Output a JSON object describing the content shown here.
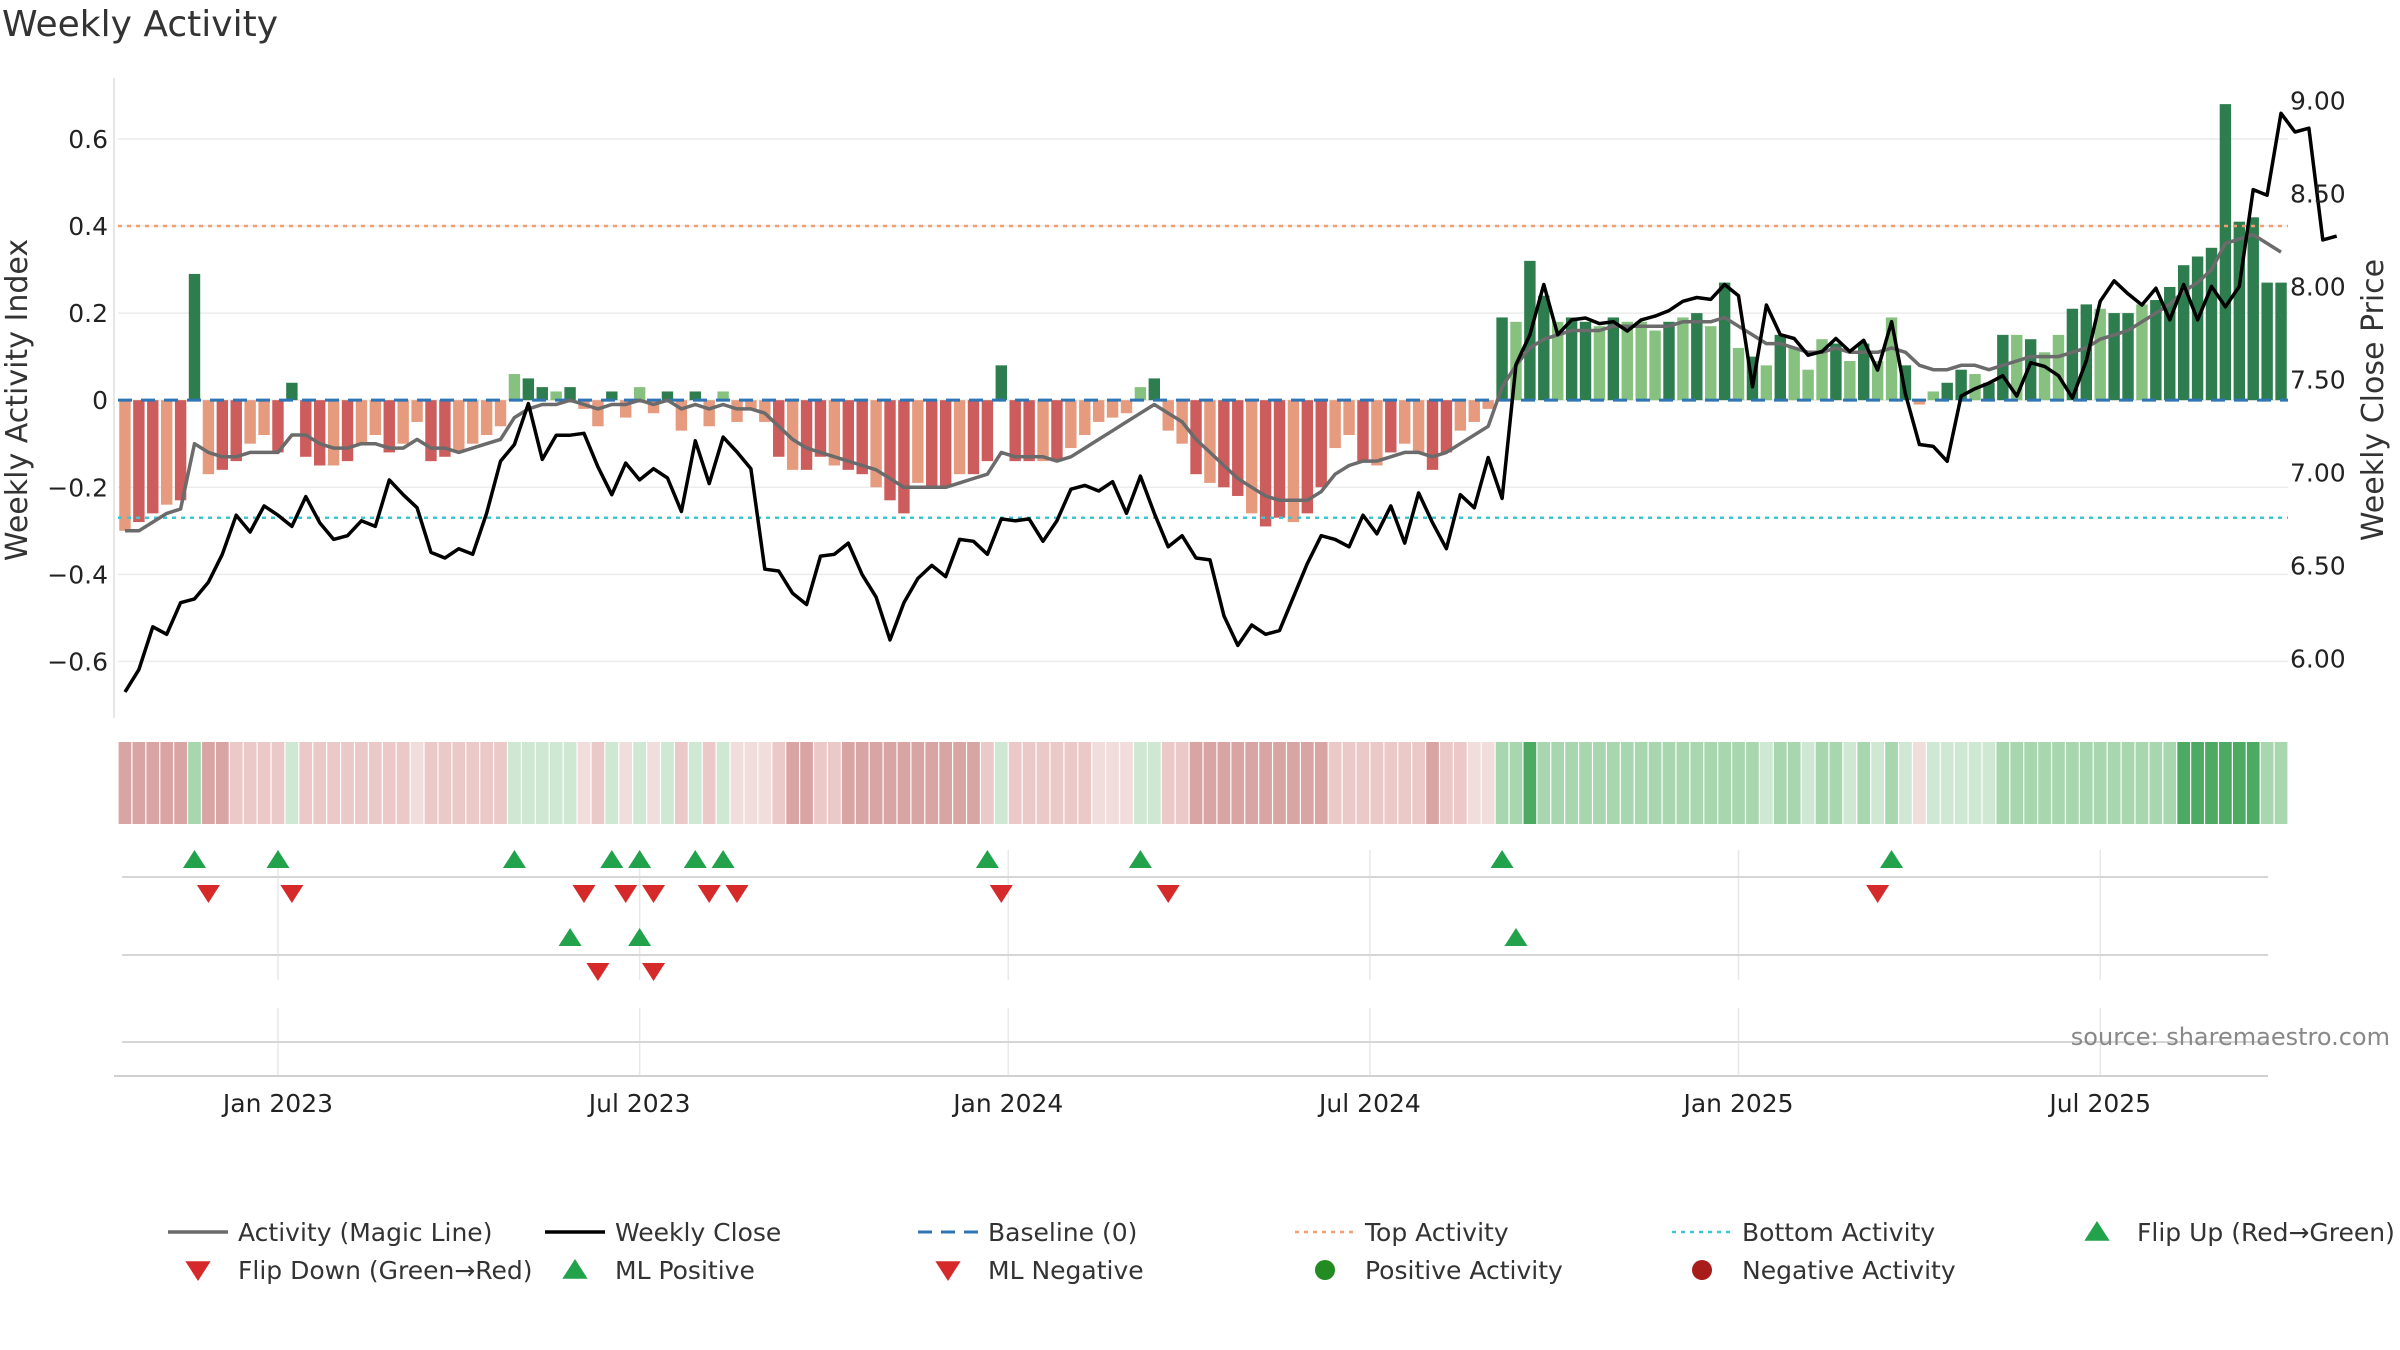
{
  "chart_data": {
    "type": "bar",
    "title": "Weekly Activity",
    "ylabel": "Weekly Activity Index",
    "y2label": "Weekly Close Price",
    "ylim": [
      -0.73,
      0.74
    ],
    "y2lim": [
      5.68,
      9.12
    ],
    "yticks": [
      -0.6,
      -0.4,
      -0.2,
      0,
      0.2,
      0.4,
      0.6
    ],
    "ytick_labels": [
      "−0.6",
      "−0.4",
      "−0.2",
      "0",
      "0.2",
      "0.4",
      "0.6"
    ],
    "y2ticks": [
      6.0,
      6.5,
      7.0,
      7.5,
      8.0,
      8.5,
      9.0
    ],
    "y2tick_labels": [
      "6.00",
      "6.50",
      "7.00",
      "7.50",
      "8.00",
      "8.50",
      "9.00"
    ],
    "x_month_ticks": [
      {
        "label": "Jan 2023",
        "week": 11.5
      },
      {
        "label": "Jul 2023",
        "week": 37.5
      },
      {
        "label": "Jan 2024",
        "week": 64
      },
      {
        "label": "Jul 2024",
        "week": 90
      },
      {
        "label": "Jan 2025",
        "week": 116.5
      },
      {
        "label": "Jul 2025",
        "week": 142.5
      }
    ],
    "top_activity": 0.4,
    "bottom_activity": -0.27,
    "activity": [
      -0.3,
      -0.28,
      -0.26,
      -0.24,
      -0.23,
      0.29,
      -0.17,
      -0.16,
      -0.14,
      -0.1,
      -0.08,
      -0.12,
      0.04,
      -0.13,
      -0.15,
      -0.15,
      -0.14,
      -0.1,
      -0.08,
      -0.12,
      -0.1,
      -0.05,
      -0.14,
      -0.13,
      -0.12,
      -0.1,
      -0.08,
      -0.06,
      0.06,
      0.05,
      0.03,
      0.02,
      0.03,
      -0.02,
      -0.06,
      0.02,
      -0.04,
      0.03,
      -0.03,
      0.02,
      -0.07,
      0.02,
      -0.06,
      0.02,
      -0.05,
      -0.02,
      -0.05,
      -0.13,
      -0.16,
      -0.16,
      -0.13,
      -0.15,
      -0.16,
      -0.17,
      -0.2,
      -0.23,
      -0.26,
      -0.19,
      -0.2,
      -0.2,
      -0.17,
      -0.17,
      -0.14,
      0.08,
      -0.14,
      -0.14,
      -0.14,
      -0.14,
      -0.11,
      -0.08,
      -0.05,
      -0.04,
      -0.03,
      0.03,
      0.05,
      -0.07,
      -0.1,
      -0.17,
      -0.19,
      -0.2,
      -0.22,
      -0.26,
      -0.29,
      -0.27,
      -0.28,
      -0.26,
      -0.2,
      -0.11,
      -0.08,
      -0.14,
      -0.15,
      -0.12,
      -0.1,
      -0.12,
      -0.16,
      -0.12,
      -0.07,
      -0.05,
      -0.02,
      0.19,
      0.18,
      0.32,
      0.24,
      0.18,
      0.19,
      0.18,
      0.17,
      0.19,
      0.18,
      0.18,
      0.16,
      0.18,
      0.19,
      0.2,
      0.17,
      0.27,
      0.12,
      0.1,
      0.08,
      0.15,
      0.12,
      0.07,
      0.14,
      0.13,
      0.09,
      0.13,
      0.09,
      0.19,
      0.08,
      -0.01,
      0.02,
      0.04,
      0.07,
      0.06,
      0.04,
      0.15,
      0.15,
      0.14,
      0.11,
      0.15,
      0.21,
      0.22,
      0.21,
      0.2,
      0.2,
      0.22,
      0.23,
      0.26,
      0.31,
      0.33,
      0.35,
      0.68,
      0.41,
      0.42,
      0.27,
      0.27
    ],
    "magic_line": [
      -0.3,
      -0.3,
      -0.28,
      -0.26,
      -0.25,
      -0.1,
      -0.12,
      -0.13,
      -0.13,
      -0.12,
      -0.12,
      -0.12,
      -0.08,
      -0.08,
      -0.1,
      -0.11,
      -0.11,
      -0.1,
      -0.1,
      -0.11,
      -0.11,
      -0.09,
      -0.11,
      -0.11,
      -0.12,
      -0.11,
      -0.1,
      -0.09,
      -0.04,
      -0.02,
      -0.01,
      -0.01,
      0.0,
      -0.01,
      -0.02,
      -0.01,
      -0.01,
      0.0,
      -0.01,
      0.0,
      -0.02,
      -0.01,
      -0.02,
      -0.01,
      -0.02,
      -0.02,
      -0.03,
      -0.06,
      -0.09,
      -0.11,
      -0.12,
      -0.13,
      -0.14,
      -0.15,
      -0.16,
      -0.18,
      -0.2,
      -0.2,
      -0.2,
      -0.2,
      -0.19,
      -0.18,
      -0.17,
      -0.12,
      -0.13,
      -0.13,
      -0.13,
      -0.14,
      -0.13,
      -0.11,
      -0.09,
      -0.07,
      -0.05,
      -0.03,
      -0.01,
      -0.03,
      -0.05,
      -0.09,
      -0.12,
      -0.15,
      -0.18,
      -0.2,
      -0.22,
      -0.23,
      -0.23,
      -0.23,
      -0.21,
      -0.17,
      -0.15,
      -0.14,
      -0.14,
      -0.13,
      -0.12,
      -0.12,
      -0.13,
      -0.12,
      -0.1,
      -0.08,
      -0.06,
      0.03,
      0.08,
      0.12,
      0.14,
      0.15,
      0.16,
      0.16,
      0.16,
      0.17,
      0.17,
      0.17,
      0.17,
      0.17,
      0.18,
      0.18,
      0.18,
      0.19,
      0.17,
      0.15,
      0.13,
      0.13,
      0.12,
      0.11,
      0.11,
      0.12,
      0.11,
      0.11,
      0.11,
      0.12,
      0.11,
      0.08,
      0.07,
      0.07,
      0.08,
      0.08,
      0.07,
      0.08,
      0.09,
      0.1,
      0.1,
      0.1,
      0.11,
      0.12,
      0.14,
      0.15,
      0.16,
      0.18,
      0.2,
      0.22,
      0.25,
      0.27,
      0.3,
      0.36,
      0.37,
      0.38,
      0.36,
      0.34
    ],
    "weekly_close": [
      5.82,
      5.94,
      6.17,
      6.13,
      6.3,
      6.32,
      6.41,
      6.56,
      6.77,
      6.68,
      6.82,
      6.77,
      6.71,
      6.87,
      6.73,
      6.64,
      6.66,
      6.74,
      6.71,
      6.96,
      6.88,
      6.81,
      6.57,
      6.54,
      6.59,
      6.56,
      6.78,
      7.06,
      7.15,
      7.37,
      7.07,
      7.2,
      7.2,
      7.21,
      7.03,
      6.88,
      7.05,
      6.96,
      7.02,
      6.97,
      6.79,
      7.17,
      6.94,
      7.19,
      7.11,
      7.02,
      6.48,
      6.47,
      6.35,
      6.29,
      6.55,
      6.56,
      6.62,
      6.45,
      6.33,
      6.1,
      6.3,
      6.43,
      6.5,
      6.44,
      6.64,
      6.63,
      6.56,
      6.75,
      6.74,
      6.75,
      6.63,
      6.74,
      6.91,
      6.93,
      6.9,
      6.95,
      6.78,
      6.98,
      6.78,
      6.6,
      6.66,
      6.54,
      6.53,
      6.23,
      6.07,
      6.18,
      6.13,
      6.15,
      6.33,
      6.51,
      6.66,
      6.64,
      6.6,
      6.77,
      6.67,
      6.82,
      6.62,
      6.89,
      6.73,
      6.59,
      6.88,
      6.81,
      7.08,
      6.86,
      7.58,
      7.74,
      8.01,
      7.74,
      7.82,
      7.83,
      7.8,
      7.81,
      7.76,
      7.82,
      7.84,
      7.87,
      7.92,
      7.94,
      7.93,
      8.01,
      7.95,
      7.46,
      7.9,
      7.74,
      7.72,
      7.63,
      7.65,
      7.72,
      7.65,
      7.71,
      7.55,
      7.81,
      7.42,
      7.15,
      7.14,
      7.06,
      7.41,
      7.45,
      7.48,
      7.52,
      7.41,
      7.59,
      7.57,
      7.52,
      7.4,
      7.6,
      7.92,
      8.03,
      7.96,
      7.9,
      7.99,
      7.82,
      8.01,
      7.82,
      8.0,
      7.89,
      8.0,
      8.52,
      8.49,
      8.93,
      8.83,
      8.85,
      8.25,
      8.27
    ],
    "ribbon_colors": {
      "strong_negative": "#d9a4a4",
      "mild_negative": "#ecc9c9",
      "faint_negative": "#f2dddd",
      "mild_positive": "#cfe8d3",
      "positive": "#a8d6ae",
      "strong_positive": "#4daa62"
    },
    "events_row1_up": [
      5.5,
      11.5,
      28.5,
      35.5,
      37.5,
      41.5,
      43.5,
      62.5,
      73.5,
      99.5,
      127.5
    ],
    "events_row1_down": [
      6.5,
      12.5,
      33.5,
      36.5,
      38.5,
      42.5,
      44.5,
      63.5,
      75.5,
      126.5
    ],
    "events_row2_up": [
      32.5,
      37.5,
      100.5
    ],
    "events_row2_down": [
      34.5,
      38.5
    ],
    "legend": [
      {
        "label": "Activity (Magic Line)",
        "marker": "line-gray"
      },
      {
        "label": "Weekly Close",
        "marker": "line-black"
      },
      {
        "label": "Baseline (0)",
        "marker": "dash-blue"
      },
      {
        "label": "Top Activity",
        "marker": "dot-orange"
      },
      {
        "label": "Bottom Activity",
        "marker": "dot-cyan"
      },
      {
        "label": "Flip Up (Red→Green)",
        "marker": "tri-up"
      },
      {
        "label": "Flip Down (Green→Red)",
        "marker": "tri-down"
      },
      {
        "label": "ML Positive",
        "marker": "tri-up"
      },
      {
        "label": "ML Negative",
        "marker": "tri-down"
      },
      {
        "label": "Positive Activity",
        "marker": "circle-green"
      },
      {
        "label": "Negative Activity",
        "marker": "circle-red"
      }
    ],
    "source": "source: sharemaestro.com"
  },
  "colors": {
    "pos_strong": "#2e7d4f",
    "pos_light": "#86c17f",
    "neg_strong": "#cd5c5c",
    "neg_light": "#e69b7f",
    "magic_line": "#6b6b6b",
    "close_line": "#000000",
    "baseline": "#2f74b5",
    "top_line": "#f0a070",
    "bottom_line": "#3ec7cf",
    "marker_up": "#22a24a",
    "marker_down": "#d62a2a",
    "marker_pos": "#228b22",
    "marker_neg": "#a81c1c"
  }
}
